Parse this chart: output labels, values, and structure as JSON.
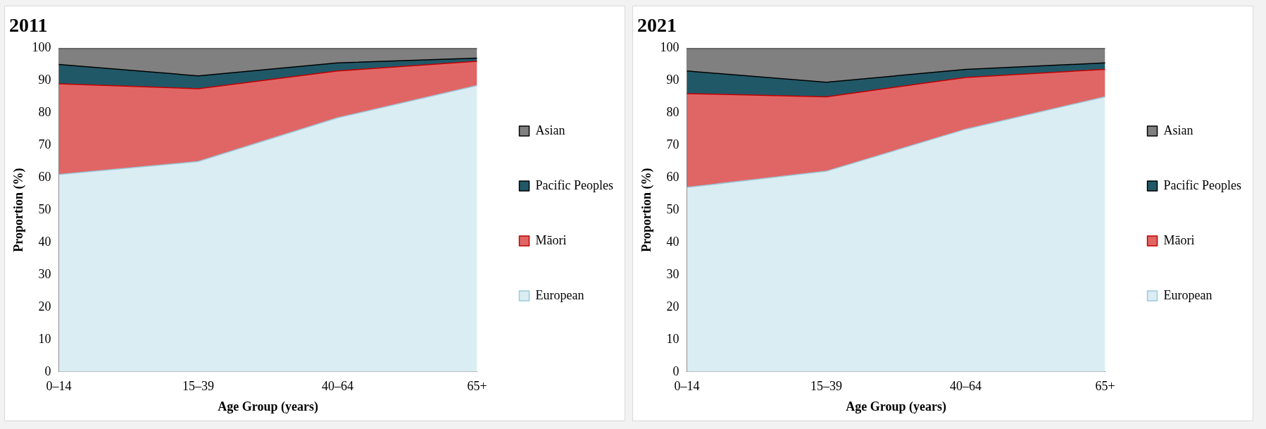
{
  "chart_data": [
    {
      "type": "area",
      "title": "2011",
      "xlabel": "Age Group (years)",
      "ylabel": "Proportion (%)",
      "categories": [
        "0–14",
        "15–39",
        "40–64",
        "65+"
      ],
      "stacked": true,
      "ylim": [
        0,
        100
      ],
      "yticks": [
        0,
        10,
        20,
        30,
        40,
        50,
        60,
        70,
        80,
        90,
        100
      ],
      "legend": "right",
      "series": [
        {
          "name": "European",
          "color": "#daedf3",
          "values": [
            61,
            65,
            78.5,
            88.5
          ]
        },
        {
          "name": "Māori",
          "color": "#e06666",
          "values": [
            28,
            22.5,
            14.5,
            7.5
          ]
        },
        {
          "name": "Pacific Peoples",
          "color": "#215868",
          "values": [
            6,
            4,
            2.5,
            1
          ]
        },
        {
          "name": "Asian",
          "color": "#808080",
          "values": [
            5,
            8.5,
            4.5,
            3
          ]
        }
      ]
    },
    {
      "type": "area",
      "title": "2021",
      "xlabel": "Age Group (years)",
      "ylabel": "Proportion (%)",
      "categories": [
        "0–14",
        "15–39",
        "40–64",
        "65+"
      ],
      "stacked": true,
      "ylim": [
        0,
        100
      ],
      "yticks": [
        0,
        10,
        20,
        30,
        40,
        50,
        60,
        70,
        80,
        90,
        100
      ],
      "legend": "right",
      "series": [
        {
          "name": "European",
          "color": "#daedf3",
          "values": [
            57,
            62,
            75,
            85
          ]
        },
        {
          "name": "Māori",
          "color": "#e06666",
          "values": [
            29,
            23,
            16,
            8.5
          ]
        },
        {
          "name": "Pacific Peoples",
          "color": "#215868",
          "values": [
            7,
            4.5,
            2.5,
            2
          ]
        },
        {
          "name": "Asian",
          "color": "#808080",
          "values": [
            7,
            10.5,
            6.5,
            4.5
          ]
        }
      ]
    }
  ]
}
